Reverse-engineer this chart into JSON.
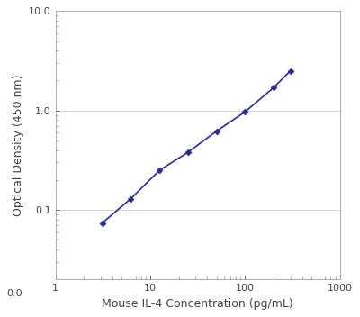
{
  "x_data": [
    3.125,
    6.25,
    12.5,
    25.0,
    50.0,
    100.0,
    200.0,
    300.0
  ],
  "y_data": [
    0.074,
    0.13,
    0.25,
    0.38,
    0.62,
    0.97,
    1.7,
    2.5
  ],
  "line_color": "#2B2D8E",
  "marker_color": "#2B2D8E",
  "marker_style": "D",
  "marker_size": 3.5,
  "line_width": 1.2,
  "xlabel": "Mouse IL-4 Concentration (pg/mL)",
  "ylabel": "Optical Density (450 nm)",
  "xlim": [
    1,
    1000
  ],
  "ylim_bottom": 0.02,
  "ylim_top": 10.0,
  "bg_color": "#ffffff",
  "grid_color": "#cccccc",
  "label_fontsize": 9,
  "tick_fontsize": 8,
  "yticks_major": [
    0.1,
    1.0,
    10.0
  ],
  "ytick_labels": [
    "0.1",
    "1.0",
    "10.0"
  ],
  "xticks_major": [
    1,
    10,
    100,
    1000
  ],
  "xtick_labels": [
    "1",
    "10",
    "100",
    "1000"
  ]
}
